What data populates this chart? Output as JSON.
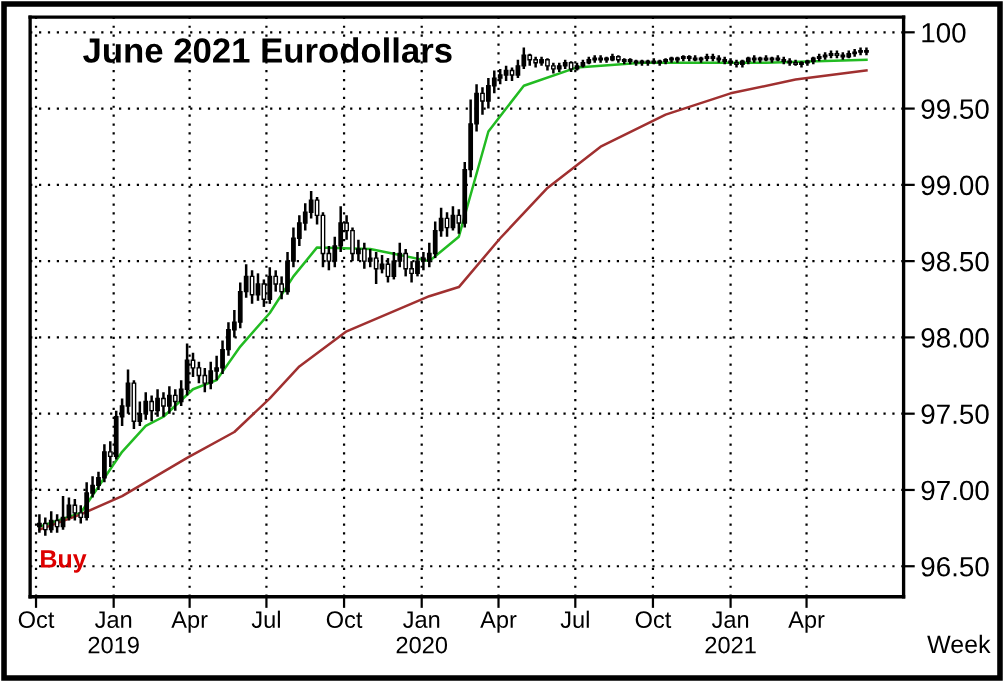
{
  "chart_data": {
    "type": "candlestick",
    "title": "June 2021 Eurodollars",
    "xlabel": "Week",
    "annotations": [
      {
        "text": "Buy",
        "x": "2018-10-05",
        "y": 96.72
      }
    ],
    "x": [
      "2018-10-05",
      "2018-10-12",
      "2018-10-19",
      "2018-10-26",
      "2018-11-02",
      "2018-11-09",
      "2018-11-16",
      "2018-11-23",
      "2018-11-30",
      "2018-12-07",
      "2018-12-14",
      "2018-12-21",
      "2018-12-28",
      "2019-01-04",
      "2019-01-11",
      "2019-01-18",
      "2019-01-25",
      "2019-02-01",
      "2019-02-08",
      "2019-02-15",
      "2019-02-22",
      "2019-03-01",
      "2019-03-08",
      "2019-03-15",
      "2019-03-22",
      "2019-03-29",
      "2019-04-05",
      "2019-04-12",
      "2019-04-19",
      "2019-04-26",
      "2019-05-03",
      "2019-05-10",
      "2019-05-17",
      "2019-05-24",
      "2019-05-31",
      "2019-06-07",
      "2019-06-14",
      "2019-06-21",
      "2019-06-28",
      "2019-07-05",
      "2019-07-12",
      "2019-07-19",
      "2019-07-26",
      "2019-08-02",
      "2019-08-09",
      "2019-08-16",
      "2019-08-23",
      "2019-08-30",
      "2019-09-06",
      "2019-09-13",
      "2019-09-20",
      "2019-09-27",
      "2019-10-04",
      "2019-10-11",
      "2019-10-18",
      "2019-10-25",
      "2019-11-01",
      "2019-11-08",
      "2019-11-15",
      "2019-11-22",
      "2019-11-29",
      "2019-12-06",
      "2019-12-13",
      "2019-12-20",
      "2019-12-27",
      "2020-01-03",
      "2020-01-10",
      "2020-01-17",
      "2020-01-24",
      "2020-01-31",
      "2020-02-07",
      "2020-02-14",
      "2020-02-21",
      "2020-02-28",
      "2020-03-06",
      "2020-03-13",
      "2020-03-20",
      "2020-03-27",
      "2020-04-03",
      "2020-04-10",
      "2020-04-17",
      "2020-04-24",
      "2020-05-01",
      "2020-05-08",
      "2020-05-15",
      "2020-05-22",
      "2020-05-29",
      "2020-06-05",
      "2020-06-12",
      "2020-06-19",
      "2020-06-26",
      "2020-07-03",
      "2020-07-10",
      "2020-07-17",
      "2020-07-24",
      "2020-07-31",
      "2020-08-07",
      "2020-08-14",
      "2020-08-21",
      "2020-08-28",
      "2020-09-04",
      "2020-09-11",
      "2020-09-18",
      "2020-09-25",
      "2020-10-02",
      "2020-10-09",
      "2020-10-16",
      "2020-10-23",
      "2020-10-30",
      "2020-11-06",
      "2020-11-13",
      "2020-11-20",
      "2020-11-27",
      "2020-12-04",
      "2020-12-11",
      "2020-12-18",
      "2020-12-25",
      "2021-01-01",
      "2021-01-08",
      "2021-01-15",
      "2021-01-22",
      "2021-01-29",
      "2021-02-05",
      "2021-02-12",
      "2021-02-19",
      "2021-02-26",
      "2021-03-05",
      "2021-03-12",
      "2021-03-19",
      "2021-03-26",
      "2021-04-02",
      "2021-04-09",
      "2021-04-16",
      "2021-04-23",
      "2021-04-30",
      "2021-05-07",
      "2021-05-14",
      "2021-05-21",
      "2021-05-28",
      "2021-06-04",
      "2021-06-11"
    ],
    "ohlc": [
      [
        96.76,
        96.84,
        96.72,
        96.78
      ],
      [
        96.78,
        96.82,
        96.7,
        96.74
      ],
      [
        96.74,
        96.86,
        96.72,
        96.8
      ],
      [
        96.8,
        96.84,
        96.72,
        96.76
      ],
      [
        96.76,
        96.96,
        96.74,
        96.82
      ],
      [
        96.82,
        96.95,
        96.8,
        96.9
      ],
      [
        96.9,
        96.94,
        96.8,
        96.85
      ],
      [
        96.85,
        96.9,
        96.78,
        96.82
      ],
      [
        96.82,
        97.05,
        96.8,
        96.98
      ],
      [
        96.98,
        97.09,
        96.95,
        97.03
      ],
      [
        97.03,
        97.12,
        97.0,
        97.08
      ],
      [
        97.08,
        97.3,
        97.05,
        97.25
      ],
      [
        97.25,
        97.32,
        97.15,
        97.22
      ],
      [
        97.22,
        97.52,
        97.2,
        97.48
      ],
      [
        97.48,
        97.6,
        97.42,
        97.55
      ],
      [
        97.55,
        97.79,
        97.5,
        97.7
      ],
      [
        97.7,
        97.72,
        97.4,
        97.45
      ],
      [
        97.45,
        97.58,
        97.42,
        97.5
      ],
      [
        97.5,
        97.64,
        97.46,
        97.58
      ],
      [
        97.58,
        97.62,
        97.45,
        97.52
      ],
      [
        97.52,
        97.66,
        97.48,
        97.6
      ],
      [
        97.6,
        97.64,
        97.48,
        97.55
      ],
      [
        97.55,
        97.68,
        97.5,
        97.62
      ],
      [
        97.62,
        97.66,
        97.52,
        97.58
      ],
      [
        97.58,
        97.72,
        97.55,
        97.66
      ],
      [
        97.66,
        97.96,
        97.62,
        97.85
      ],
      [
        97.85,
        97.9,
        97.74,
        97.8
      ],
      [
        97.8,
        97.84,
        97.7,
        97.75
      ],
      [
        97.75,
        97.8,
        97.64,
        97.7
      ],
      [
        97.7,
        97.84,
        97.66,
        97.78
      ],
      [
        97.78,
        97.88,
        97.72,
        97.8
      ],
      [
        97.8,
        97.98,
        97.76,
        97.92
      ],
      [
        97.92,
        98.1,
        97.88,
        98.05
      ],
      [
        98.05,
        98.18,
        98.0,
        98.1
      ],
      [
        98.1,
        98.36,
        98.06,
        98.3
      ],
      [
        98.3,
        98.48,
        98.26,
        98.4
      ],
      [
        98.4,
        98.44,
        98.22,
        98.28
      ],
      [
        98.28,
        98.42,
        98.24,
        98.35
      ],
      [
        98.35,
        98.38,
        98.2,
        98.25
      ],
      [
        98.25,
        98.46,
        98.22,
        98.4
      ],
      [
        98.4,
        98.44,
        98.3,
        98.35
      ],
      [
        98.35,
        98.4,
        98.25,
        98.3
      ],
      [
        98.3,
        98.56,
        98.28,
        98.5
      ],
      [
        98.5,
        98.72,
        98.46,
        98.65
      ],
      [
        98.65,
        98.8,
        98.6,
        98.75
      ],
      [
        98.75,
        98.88,
        98.7,
        98.82
      ],
      [
        98.82,
        98.96,
        98.78,
        98.9
      ],
      [
        98.9,
        98.92,
        98.74,
        98.8
      ],
      [
        98.8,
        98.82,
        98.46,
        98.55
      ],
      [
        98.55,
        98.6,
        98.44,
        98.5
      ],
      [
        98.5,
        98.66,
        98.46,
        98.6
      ],
      [
        98.6,
        98.86,
        98.56,
        98.75
      ],
      [
        98.75,
        98.8,
        98.64,
        98.7
      ],
      [
        98.7,
        98.72,
        98.5,
        98.55
      ],
      [
        98.55,
        98.64,
        98.5,
        98.58
      ],
      [
        98.58,
        98.62,
        98.45,
        98.5
      ],
      [
        98.5,
        98.58,
        98.46,
        98.52
      ],
      [
        98.52,
        98.56,
        98.35,
        98.45
      ],
      [
        98.45,
        98.54,
        98.42,
        98.48
      ],
      [
        98.48,
        98.52,
        98.36,
        98.4
      ],
      [
        98.4,
        98.56,
        98.38,
        98.5
      ],
      [
        98.5,
        98.62,
        98.46,
        98.55
      ],
      [
        98.55,
        98.58,
        98.4,
        98.45
      ],
      [
        98.45,
        98.5,
        98.36,
        98.42
      ],
      [
        98.42,
        98.56,
        98.4,
        98.5
      ],
      [
        98.5,
        98.56,
        98.44,
        98.52
      ],
      [
        98.5,
        98.62,
        98.46,
        98.55
      ],
      [
        98.55,
        98.76,
        98.52,
        98.7
      ],
      [
        98.7,
        98.85,
        98.66,
        98.78
      ],
      [
        98.78,
        98.82,
        98.66,
        98.72
      ],
      [
        98.72,
        98.86,
        98.7,
        98.8
      ],
      [
        98.8,
        98.84,
        98.68,
        98.75
      ],
      [
        98.75,
        99.15,
        98.72,
        99.1
      ],
      [
        99.1,
        99.56,
        99.05,
        99.4
      ],
      [
        99.4,
        99.66,
        99.35,
        99.6
      ],
      [
        99.6,
        99.64,
        99.46,
        99.55
      ],
      [
        99.55,
        99.7,
        99.5,
        99.65
      ],
      [
        99.65,
        99.75,
        99.6,
        99.7
      ],
      [
        99.7,
        99.76,
        99.66,
        99.72
      ],
      [
        99.72,
        99.78,
        99.68,
        99.75
      ],
      [
        99.75,
        99.77,
        99.68,
        99.72
      ],
      [
        99.72,
        99.82,
        99.7,
        99.78
      ],
      [
        99.78,
        99.9,
        99.76,
        99.85
      ],
      [
        99.85,
        99.86,
        99.78,
        99.82
      ],
      [
        99.82,
        99.84,
        99.77,
        99.8
      ],
      [
        99.8,
        99.84,
        99.78,
        99.82
      ],
      [
        99.82,
        99.83,
        99.75,
        99.78
      ],
      [
        99.78,
        99.8,
        99.73,
        99.76
      ],
      [
        99.76,
        99.8,
        99.74,
        99.78
      ],
      [
        99.78,
        99.82,
        99.76,
        99.8
      ],
      [
        99.8,
        99.81,
        99.74,
        99.76
      ],
      [
        99.76,
        99.8,
        99.75,
        99.78
      ],
      [
        99.78,
        99.82,
        99.77,
        99.8
      ],
      [
        99.8,
        99.84,
        99.79,
        99.82
      ],
      [
        99.82,
        99.85,
        99.8,
        99.83
      ],
      [
        99.83,
        99.85,
        99.8,
        99.82
      ],
      [
        99.82,
        99.84,
        99.8,
        99.83
      ],
      [
        99.82,
        99.86,
        99.81,
        99.84
      ],
      [
        99.84,
        99.85,
        99.8,
        99.82
      ],
      [
        99.82,
        99.83,
        99.79,
        99.81
      ],
      [
        99.81,
        99.83,
        99.79,
        99.82
      ],
      [
        99.81,
        99.82,
        99.78,
        99.8
      ],
      [
        99.8,
        99.82,
        99.78,
        99.81
      ],
      [
        99.8,
        99.82,
        99.78,
        99.81
      ],
      [
        99.81,
        99.83,
        99.79,
        99.8
      ],
      [
        99.8,
        99.82,
        99.78,
        99.81
      ],
      [
        99.81,
        99.83,
        99.79,
        99.82
      ],
      [
        99.82,
        99.84,
        99.8,
        99.83
      ],
      [
        99.82,
        99.84,
        99.8,
        99.83
      ],
      [
        99.83,
        99.85,
        99.81,
        99.84
      ],
      [
        99.84,
        99.85,
        99.81,
        99.83
      ],
      [
        99.83,
        99.85,
        99.81,
        99.82
      ],
      [
        99.82,
        99.84,
        99.8,
        99.83
      ],
      [
        99.83,
        99.86,
        99.81,
        99.84
      ],
      [
        99.84,
        99.86,
        99.81,
        99.83
      ],
      [
        99.83,
        99.85,
        99.8,
        99.82
      ],
      [
        99.82,
        99.84,
        99.79,
        99.81
      ],
      [
        99.81,
        99.83,
        99.78,
        99.8
      ],
      [
        99.8,
        99.82,
        99.77,
        99.79
      ],
      [
        99.79,
        99.82,
        99.77,
        99.81
      ],
      [
        99.81,
        99.84,
        99.79,
        99.83
      ],
      [
        99.83,
        99.85,
        99.8,
        99.82
      ],
      [
        99.82,
        99.84,
        99.8,
        99.83
      ],
      [
        99.83,
        99.85,
        99.81,
        99.82
      ],
      [
        99.82,
        99.84,
        99.8,
        99.83
      ],
      [
        99.83,
        99.85,
        99.81,
        99.82
      ],
      [
        99.82,
        99.84,
        99.79,
        99.81
      ],
      [
        99.81,
        99.83,
        99.78,
        99.8
      ],
      [
        99.8,
        99.82,
        99.78,
        99.79
      ],
      [
        99.79,
        99.81,
        99.77,
        99.8
      ],
      [
        99.8,
        99.82,
        99.78,
        99.81
      ],
      [
        99.81,
        99.84,
        99.79,
        99.83
      ],
      [
        99.83,
        99.86,
        99.81,
        99.84
      ],
      [
        99.84,
        99.87,
        99.82,
        99.85
      ],
      [
        99.85,
        99.88,
        99.83,
        99.86
      ],
      [
        99.86,
        99.88,
        99.83,
        99.85
      ],
      [
        99.85,
        99.87,
        99.82,
        99.84
      ],
      [
        99.84,
        99.88,
        99.83,
        99.86
      ],
      [
        99.86,
        99.89,
        99.84,
        99.87
      ],
      [
        99.87,
        99.9,
        99.85,
        99.88
      ],
      [
        99.87,
        99.9,
        99.85,
        99.88
      ]
    ],
    "color": "#000000",
    "series": [
      {
        "type": "line",
        "color": "#22bb22",
        "x": [
          "2018-10-05",
          "2018-11-23",
          "2019-01-11",
          "2019-02-08",
          "2019-03-01",
          "2019-04-05",
          "2019-05-03",
          "2019-05-31",
          "2019-07-05",
          "2019-08-02",
          "2019-08-30",
          "2019-11-01",
          "2020-01-10",
          "2020-02-14",
          "2020-03-20",
          "2020-05-01",
          "2020-07-03",
          "2020-09-18",
          "2021-02-12",
          "2021-06-11"
        ],
        "values": [
          96.76,
          96.85,
          97.25,
          97.42,
          97.48,
          97.66,
          97.72,
          97.94,
          98.16,
          98.4,
          98.59,
          98.58,
          98.5,
          98.66,
          99.35,
          99.65,
          99.77,
          99.8,
          99.8,
          99.82
        ]
      },
      {
        "type": "line",
        "color": "#a03030",
        "x": [
          "2018-10-05",
          "2018-11-23",
          "2019-01-11",
          "2019-03-29",
          "2019-05-24",
          "2019-07-05",
          "2019-08-09",
          "2019-10-04",
          "2020-01-10",
          "2020-02-14",
          "2020-04-03",
          "2020-05-29",
          "2020-07-31",
          "2020-10-16",
          "2021-01-01",
          "2021-03-19",
          "2021-06-11"
        ],
        "values": [
          96.74,
          96.84,
          96.96,
          97.21,
          97.38,
          97.6,
          97.81,
          98.04,
          98.27,
          98.33,
          98.65,
          98.98,
          99.25,
          99.46,
          99.6,
          99.69,
          99.75
        ]
      }
    ],
    "xlim": [
      "2018-09-24",
      "2021-07-25"
    ],
    "xticks": [
      {
        "value": "2018-10-01",
        "label": "Oct"
      },
      {
        "value": "2019-01-01",
        "label": "Jan\n2019"
      },
      {
        "value": "2019-04-01",
        "label": "Apr"
      },
      {
        "value": "2019-07-01",
        "label": "Jul"
      },
      {
        "value": "2019-10-01",
        "label": "Oct"
      },
      {
        "value": "2020-01-01",
        "label": "Jan\n2020"
      },
      {
        "value": "2020-04-01",
        "label": "Apr"
      },
      {
        "value": "2020-07-01",
        "label": "Jul"
      },
      {
        "value": "2020-10-01",
        "label": "Oct"
      },
      {
        "value": "2021-01-01",
        "label": "Jan\n2021"
      },
      {
        "value": "2021-04-01",
        "label": "Apr"
      }
    ],
    "ylim": [
      96.3,
      100.1
    ],
    "yticks": [
      {
        "value": 96.5,
        "label": "96.50"
      },
      {
        "value": 97,
        "label": "97.00"
      },
      {
        "value": 97.5,
        "label": "97.50"
      },
      {
        "value": 98,
        "label": "98.00"
      },
      {
        "value": 98.5,
        "label": "98.50"
      },
      {
        "value": 99,
        "label": "99.00"
      },
      {
        "value": 99.5,
        "label": "99.50"
      },
      100
    ],
    "grid": true,
    "legend": false
  }
}
